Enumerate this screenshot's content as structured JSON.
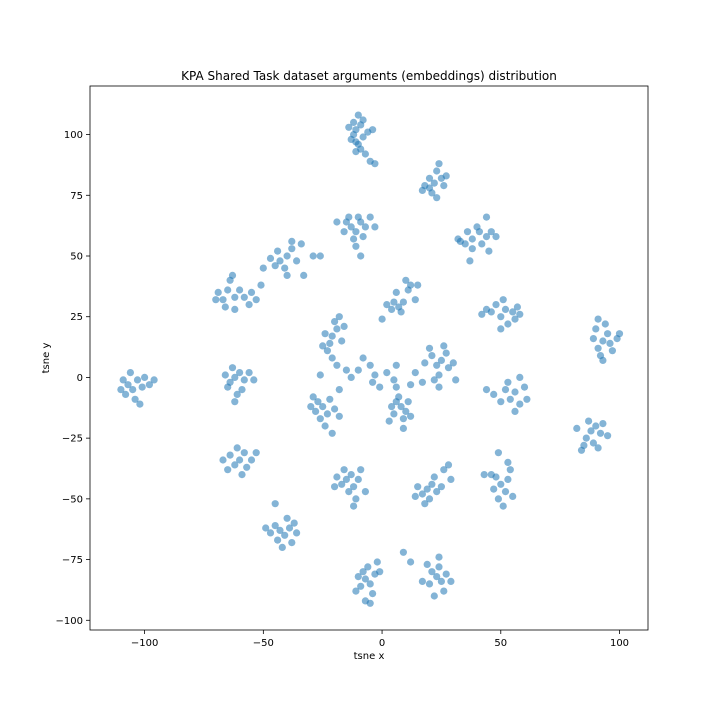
{
  "chart_data": {
    "type": "scatter",
    "title": "KPA Shared Task dataset arguments (embeddings) distribution",
    "xlabel": "tsne x",
    "ylabel": "tsne y",
    "xlim": [
      -123,
      112
    ],
    "ylim": [
      -104,
      120
    ],
    "xticks": [
      -100,
      -50,
      0,
      50,
      100
    ],
    "yticks": [
      -100,
      -75,
      -50,
      -25,
      0,
      25,
      50,
      75,
      100
    ],
    "xtick_labels": [
      "−100",
      "−50",
      "0",
      "50",
      "100"
    ],
    "ytick_labels": [
      "−100",
      "−75",
      "−50",
      "−25",
      "0",
      "25",
      "50",
      "75",
      "100"
    ],
    "grid": false,
    "marker_color": "#1f77b4",
    "marker_alpha": 0.55,
    "series": [
      {
        "points": [
          [
            -11,
            102
          ],
          [
            -12,
            100
          ],
          [
            -9,
            104
          ],
          [
            -13,
            98
          ],
          [
            -10,
            96
          ],
          [
            -8,
            99
          ],
          [
            -12,
            105
          ],
          [
            -10,
            108
          ],
          [
            -6,
            101
          ],
          [
            -9,
            94
          ],
          [
            -7,
            92
          ],
          [
            -5,
            89
          ],
          [
            -3,
            88
          ],
          [
            -14,
            103
          ],
          [
            -11,
            97
          ],
          [
            -8,
            106
          ],
          [
            -4,
            102
          ],
          [
            -11,
            93
          ],
          [
            22,
            80
          ],
          [
            20,
            78
          ],
          [
            25,
            82
          ],
          [
            18,
            79
          ],
          [
            23,
            85
          ],
          [
            26,
            79
          ],
          [
            21,
            76
          ],
          [
            24,
            88
          ],
          [
            17,
            77
          ],
          [
            27,
            83
          ],
          [
            23,
            74
          ],
          [
            20,
            82
          ],
          [
            -13,
            62
          ],
          [
            -11,
            60
          ],
          [
            -15,
            64
          ],
          [
            -9,
            64
          ],
          [
            -12,
            57
          ],
          [
            -8,
            58
          ],
          [
            -16,
            60
          ],
          [
            -10,
            66
          ],
          [
            -14,
            66
          ],
          [
            -7,
            62
          ],
          [
            -11,
            54
          ],
          [
            -19,
            64
          ],
          [
            -5,
            66
          ],
          [
            -3,
            62
          ],
          [
            -9,
            50
          ],
          [
            38,
            57
          ],
          [
            41,
            60
          ],
          [
            35,
            55
          ],
          [
            44,
            58
          ],
          [
            38,
            53
          ],
          [
            46,
            60
          ],
          [
            40,
            62
          ],
          [
            33,
            56
          ],
          [
            42,
            55
          ],
          [
            36,
            60
          ],
          [
            48,
            58
          ],
          [
            44,
            66
          ],
          [
            32,
            57
          ],
          [
            37,
            48
          ],
          [
            45,
            52
          ],
          [
            -43,
            48
          ],
          [
            -40,
            50
          ],
          [
            -38,
            53
          ],
          [
            -45,
            46
          ],
          [
            -41,
            45
          ],
          [
            -36,
            48
          ],
          [
            -44,
            52
          ],
          [
            -38,
            56
          ],
          [
            -47,
            49
          ],
          [
            -40,
            42
          ],
          [
            -50,
            45
          ],
          [
            -34,
            55
          ],
          [
            -29,
            50
          ],
          [
            -33,
            42
          ],
          [
            -26,
            50
          ],
          [
            -65,
            36
          ],
          [
            -62,
            33
          ],
          [
            -67,
            32
          ],
          [
            -64,
            40
          ],
          [
            -60,
            36
          ],
          [
            -69,
            35
          ],
          [
            -58,
            33
          ],
          [
            -66,
            29
          ],
          [
            -62,
            28
          ],
          [
            -55,
            35
          ],
          [
            -51,
            38
          ],
          [
            -56,
            30
          ],
          [
            -70,
            32
          ],
          [
            -63,
            42
          ],
          [
            -53,
            32
          ],
          [
            9,
            31
          ],
          [
            7,
            29
          ],
          [
            11,
            36
          ],
          [
            5,
            31
          ],
          [
            10,
            40
          ],
          [
            12,
            38
          ],
          [
            8,
            27
          ],
          [
            4,
            28
          ],
          [
            14,
            32
          ],
          [
            6,
            35
          ],
          [
            2,
            30
          ],
          [
            0,
            24
          ],
          [
            15,
            38
          ],
          [
            52,
            28
          ],
          [
            50,
            25
          ],
          [
            55,
            27
          ],
          [
            48,
            30
          ],
          [
            53,
            22
          ],
          [
            57,
            29
          ],
          [
            46,
            27
          ],
          [
            51,
            32
          ],
          [
            56,
            24
          ],
          [
            44,
            28
          ],
          [
            50,
            20
          ],
          [
            58,
            26
          ],
          [
            42,
            26
          ],
          [
            93,
            15
          ],
          [
            91,
            12
          ],
          [
            95,
            18
          ],
          [
            92,
            9
          ],
          [
            96,
            14
          ],
          [
            89,
            16
          ],
          [
            94,
            22
          ],
          [
            90,
            20
          ],
          [
            97,
            11
          ],
          [
            93,
            7
          ],
          [
            99,
            16
          ],
          [
            91,
            24
          ],
          [
            100,
            18
          ],
          [
            -21,
            17
          ],
          [
            -22,
            14
          ],
          [
            -19,
            20
          ],
          [
            -23,
            11
          ],
          [
            -20,
            23
          ],
          [
            -17,
            15
          ],
          [
            -24,
            18
          ],
          [
            -18,
            25
          ],
          [
            -21,
            8
          ],
          [
            -16,
            21
          ],
          [
            -25,
            13
          ],
          [
            -19,
            5
          ],
          [
            -15,
            3
          ],
          [
            25,
            7
          ],
          [
            23,
            5
          ],
          [
            27,
            10
          ],
          [
            21,
            9
          ],
          [
            24,
            1
          ],
          [
            28,
            4
          ],
          [
            20,
            12
          ],
          [
            26,
            13
          ],
          [
            22,
            -1
          ],
          [
            30,
            6
          ],
          [
            18,
            6
          ],
          [
            24,
            -4
          ],
          [
            31,
            -1
          ],
          [
            17,
            -2
          ],
          [
            -107,
            -3
          ],
          [
            -105,
            -5
          ],
          [
            -103,
            -1
          ],
          [
            -108,
            -7
          ],
          [
            -104,
            -9
          ],
          [
            -101,
            -4
          ],
          [
            -109,
            -1
          ],
          [
            -106,
            2
          ],
          [
            -100,
            0
          ],
          [
            -110,
            -5
          ],
          [
            -102,
            -11
          ],
          [
            -98,
            -3
          ],
          [
            -96,
            -1
          ],
          [
            -62,
            0
          ],
          [
            -60,
            2
          ],
          [
            -64,
            -2
          ],
          [
            -58,
            -1
          ],
          [
            -63,
            4
          ],
          [
            -59,
            -5
          ],
          [
            -66,
            1
          ],
          [
            -61,
            -7
          ],
          [
            -56,
            2
          ],
          [
            -65,
            -4
          ],
          [
            -54,
            -1
          ],
          [
            -62,
            -10
          ],
          [
            56,
            -6
          ],
          [
            54,
            -9
          ],
          [
            58,
            -11
          ],
          [
            52,
            -5
          ],
          [
            56,
            -14
          ],
          [
            60,
            -4
          ],
          [
            50,
            -10
          ],
          [
            58,
            0
          ],
          [
            53,
            -2
          ],
          [
            47,
            -7
          ],
          [
            61,
            -9
          ],
          [
            44,
            -5
          ],
          [
            -25,
            -12
          ],
          [
            -27,
            -10
          ],
          [
            -23,
            -15
          ],
          [
            -28,
            -14
          ],
          [
            -22,
            -9
          ],
          [
            -26,
            -17
          ],
          [
            -20,
            -13
          ],
          [
            -29,
            -8
          ],
          [
            -24,
            -20
          ],
          [
            -18,
            -16
          ],
          [
            -30,
            -12
          ],
          [
            -21,
            -23
          ],
          [
            -18,
            -5
          ],
          [
            8,
            -12
          ],
          [
            6,
            -10
          ],
          [
            10,
            -14
          ],
          [
            5,
            -15
          ],
          [
            9,
            -17
          ],
          [
            7,
            -8
          ],
          [
            11,
            -10
          ],
          [
            4,
            -12
          ],
          [
            9,
            -21
          ],
          [
            12,
            -16
          ],
          [
            6,
            -4
          ],
          [
            3,
            -18
          ],
          [
            88,
            -22
          ],
          [
            86,
            -25
          ],
          [
            90,
            -20
          ],
          [
            85,
            -28
          ],
          [
            89,
            -27
          ],
          [
            92,
            -23
          ],
          [
            87,
            -18
          ],
          [
            84,
            -30
          ],
          [
            93,
            -19
          ],
          [
            91,
            -29
          ],
          [
            82,
            -21
          ],
          [
            95,
            -24
          ],
          [
            -60,
            -34
          ],
          [
            -62,
            -36
          ],
          [
            -58,
            -31
          ],
          [
            -64,
            -32
          ],
          [
            -57,
            -37
          ],
          [
            -61,
            -29
          ],
          [
            -55,
            -34
          ],
          [
            -65,
            -38
          ],
          [
            -59,
            -40
          ],
          [
            -53,
            -31
          ],
          [
            -67,
            -34
          ],
          [
            -15,
            -42
          ],
          [
            -13,
            -40
          ],
          [
            -17,
            -44
          ],
          [
            -12,
            -45
          ],
          [
            -16,
            -38
          ],
          [
            -10,
            -42
          ],
          [
            -19,
            -41
          ],
          [
            -14,
            -47
          ],
          [
            -9,
            -38
          ],
          [
            -20,
            -45
          ],
          [
            -11,
            -50
          ],
          [
            -7,
            -47
          ],
          [
            -12,
            -53
          ],
          [
            19,
            -46
          ],
          [
            17,
            -48
          ],
          [
            21,
            -44
          ],
          [
            15,
            -45
          ],
          [
            20,
            -50
          ],
          [
            23,
            -47
          ],
          [
            14,
            -49
          ],
          [
            22,
            -41
          ],
          [
            18,
            -52
          ],
          [
            25,
            -45
          ],
          [
            26,
            -38
          ],
          [
            28,
            -36
          ],
          [
            29,
            -42
          ],
          [
            50,
            -44
          ],
          [
            52,
            -47
          ],
          [
            48,
            -41
          ],
          [
            53,
            -42
          ],
          [
            49,
            -50
          ],
          [
            55,
            -49
          ],
          [
            51,
            -53
          ],
          [
            47,
            -46
          ],
          [
            54,
            -38
          ],
          [
            46,
            -40
          ],
          [
            53,
            -35
          ],
          [
            49,
            -31
          ],
          [
            43,
            -40
          ],
          [
            -43,
            -63
          ],
          [
            -41,
            -65
          ],
          [
            -45,
            -61
          ],
          [
            -39,
            -62
          ],
          [
            -44,
            -67
          ],
          [
            -40,
            -58
          ],
          [
            -47,
            -64
          ],
          [
            -38,
            -68
          ],
          [
            -42,
            -70
          ],
          [
            -36,
            -64
          ],
          [
            -49,
            -62
          ],
          [
            -45,
            -52
          ],
          [
            -37,
            -60
          ],
          [
            -7,
            -83
          ],
          [
            -8,
            -80
          ],
          [
            -5,
            -85
          ],
          [
            -9,
            -86
          ],
          [
            -6,
            -78
          ],
          [
            -4,
            -89
          ],
          [
            -10,
            -82
          ],
          [
            -3,
            -81
          ],
          [
            -7,
            -92
          ],
          [
            -11,
            -88
          ],
          [
            -2,
            -76
          ],
          [
            -5,
            -93
          ],
          [
            -1,
            -80
          ],
          [
            23,
            -82
          ],
          [
            21,
            -80
          ],
          [
            25,
            -84
          ],
          [
            20,
            -85
          ],
          [
            24,
            -78
          ],
          [
            27,
            -81
          ],
          [
            19,
            -77
          ],
          [
            26,
            -88
          ],
          [
            22,
            -90
          ],
          [
            29,
            -84
          ],
          [
            17,
            -84
          ],
          [
            24,
            -74
          ],
          [
            9,
            -72
          ],
          [
            12,
            -76
          ],
          [
            -10,
            3
          ],
          [
            -5,
            5
          ],
          [
            -3,
            1
          ],
          [
            2,
            2
          ],
          [
            5,
            -1
          ],
          [
            -13,
            0
          ],
          [
            -4,
            -2
          ],
          [
            12,
            -3
          ],
          [
            -26,
            1
          ],
          [
            -8,
            8
          ],
          [
            14,
            2
          ],
          [
            -1,
            -4
          ],
          [
            6,
            5
          ]
        ]
      }
    ]
  }
}
